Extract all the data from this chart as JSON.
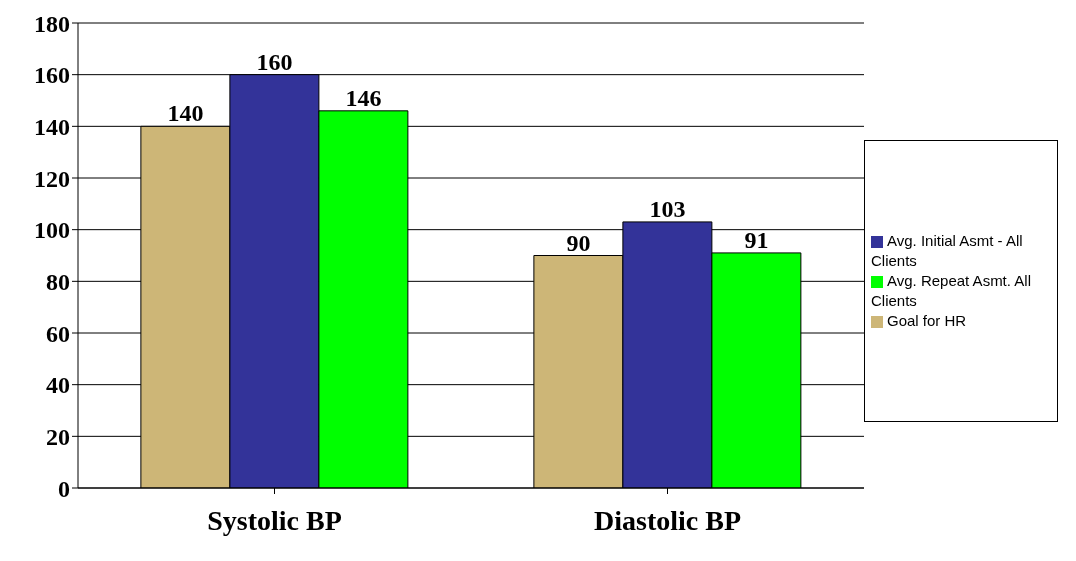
{
  "chart_data": {
    "type": "bar",
    "categories": [
      "Systolic BP",
      "Diastolic BP"
    ],
    "series": [
      {
        "name": "Goal for HR",
        "color": "#cdb677",
        "values": [
          140,
          90
        ]
      },
      {
        "name": "Avg. Initial Asmt - All Clients",
        "color": "#333399",
        "values": [
          160,
          103
        ]
      },
      {
        "name": "Avg. Repeat Asmt. All Clients",
        "color": "#00ff00",
        "values": [
          146,
          91
        ]
      }
    ],
    "ylim": [
      0,
      180
    ],
    "yticks": [
      0,
      20,
      40,
      60,
      80,
      100,
      120,
      140,
      160,
      180
    ],
    "grid": "y",
    "legend": "right",
    "data_labels": true
  }
}
